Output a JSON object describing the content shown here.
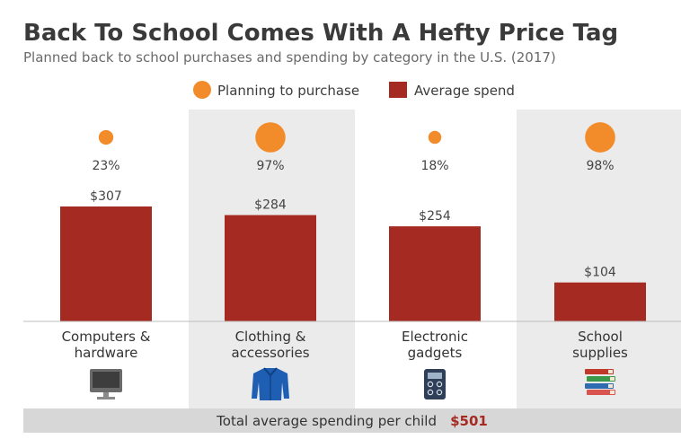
{
  "colors": {
    "bar": "#a52a22",
    "dot": "#f28c2b",
    "band": "#ebebeb",
    "footer_bg": "#d7d7d7",
    "total": "#a52a22"
  },
  "legend": {
    "planning": "Planning to purchase",
    "spend": "Average spend"
  },
  "footer": {
    "label": "Total average spending per child",
    "total": "$501"
  },
  "chart_data": {
    "type": "bar",
    "title": "Back To School Comes With A Hefty Price Tag",
    "subtitle": "Planned back to school purchases and spending by category in the U.S. (2017)",
    "categories": [
      "Computers & hardware",
      "Clothing & accessories",
      "Electronic gadgets",
      "School supplies"
    ],
    "category_lines": [
      [
        "Computers &",
        "hardware"
      ],
      [
        "Clothing &",
        "accessories"
      ],
      [
        "Electronic",
        "gadgets"
      ],
      [
        "School",
        "supplies"
      ]
    ],
    "icons": [
      "monitor-icon",
      "shirt-icon",
      "calculator-icon",
      "books-icon"
    ],
    "series": [
      {
        "name": "Average spend",
        "values": [
          307,
          284,
          254,
          104
        ],
        "labels": [
          "$307",
          "$284",
          "$254",
          "$104"
        ]
      },
      {
        "name": "Planning to purchase",
        "values": [
          23,
          97,
          18,
          98
        ],
        "labels": [
          "23%",
          "97%",
          "18%",
          "98%"
        ]
      }
    ],
    "legend_position": "top",
    "grid": false
  }
}
